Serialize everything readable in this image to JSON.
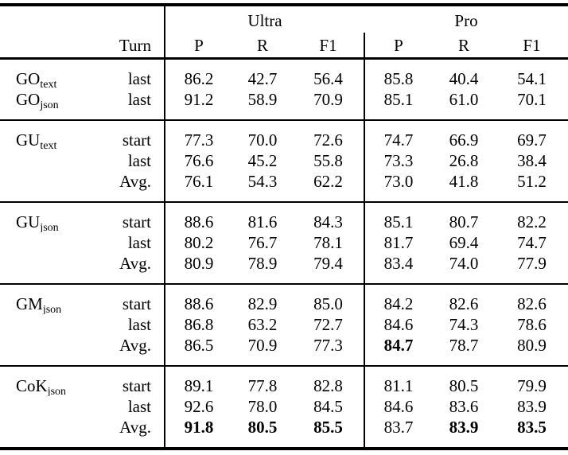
{
  "header": {
    "turn": "Turn",
    "group_ultra": "Ultra",
    "group_pro": "Pro",
    "metrics": [
      "P",
      "R",
      "F1",
      "P",
      "R",
      "F1"
    ]
  },
  "colors": {
    "text": "#000000",
    "background": "#ffffff",
    "rule": "#000000"
  },
  "blocks": [
    {
      "rows": [
        {
          "method": "GO",
          "method_sub": "text",
          "turn": "last",
          "values": [
            "86.2",
            "42.7",
            "56.4",
            "85.8",
            "40.4",
            "54.1"
          ],
          "bold": []
        },
        {
          "method": "GO",
          "method_sub": "json",
          "turn": "last",
          "values": [
            "91.2",
            "58.9",
            "70.9",
            "85.1",
            "61.0",
            "70.1"
          ],
          "bold": []
        }
      ]
    },
    {
      "rows": [
        {
          "method": "GU",
          "method_sub": "text",
          "turn": "start",
          "values": [
            "77.3",
            "70.0",
            "72.6",
            "74.7",
            "66.9",
            "69.7"
          ],
          "bold": []
        },
        {
          "method": "",
          "method_sub": "",
          "turn": "last",
          "values": [
            "76.6",
            "45.2",
            "55.8",
            "73.3",
            "26.8",
            "38.4"
          ],
          "bold": []
        },
        {
          "method": "",
          "method_sub": "",
          "turn": "Avg.",
          "values": [
            "76.1",
            "54.3",
            "62.2",
            "73.0",
            "41.8",
            "51.2"
          ],
          "bold": []
        }
      ]
    },
    {
      "rows": [
        {
          "method": "GU",
          "method_sub": "json",
          "turn": "start",
          "values": [
            "88.6",
            "81.6",
            "84.3",
            "85.1",
            "80.7",
            "82.2"
          ],
          "bold": []
        },
        {
          "method": "",
          "method_sub": "",
          "turn": "last",
          "values": [
            "80.2",
            "76.7",
            "78.1",
            "81.7",
            "69.4",
            "74.7"
          ],
          "bold": []
        },
        {
          "method": "",
          "method_sub": "",
          "turn": "Avg.",
          "values": [
            "80.9",
            "78.9",
            "79.4",
            "83.4",
            "74.0",
            "77.9"
          ],
          "bold": []
        }
      ]
    },
    {
      "rows": [
        {
          "method": "GM",
          "method_sub": "json",
          "turn": "start",
          "values": [
            "88.6",
            "82.9",
            "85.0",
            "84.2",
            "82.6",
            "82.6"
          ],
          "bold": []
        },
        {
          "method": "",
          "method_sub": "",
          "turn": "last",
          "values": [
            "86.8",
            "63.2",
            "72.7",
            "84.6",
            "74.3",
            "78.6"
          ],
          "bold": []
        },
        {
          "method": "",
          "method_sub": "",
          "turn": "Avg.",
          "values": [
            "86.5",
            "70.9",
            "77.3",
            "84.7",
            "78.7",
            "80.9"
          ],
          "bold": [
            3
          ]
        }
      ]
    },
    {
      "rows": [
        {
          "method": "CoK",
          "method_sub": "json",
          "turn": "start",
          "values": [
            "89.1",
            "77.8",
            "82.8",
            "81.1",
            "80.5",
            "79.9"
          ],
          "bold": []
        },
        {
          "method": "",
          "method_sub": "",
          "turn": "last",
          "values": [
            "92.6",
            "78.0",
            "84.5",
            "84.6",
            "83.6",
            "83.9"
          ],
          "bold": []
        },
        {
          "method": "",
          "method_sub": "",
          "turn": "Avg.",
          "values": [
            "91.8",
            "80.5",
            "85.5",
            "83.7",
            "83.9",
            "83.5"
          ],
          "bold": [
            0,
            1,
            2,
            4,
            5
          ]
        }
      ]
    }
  ]
}
